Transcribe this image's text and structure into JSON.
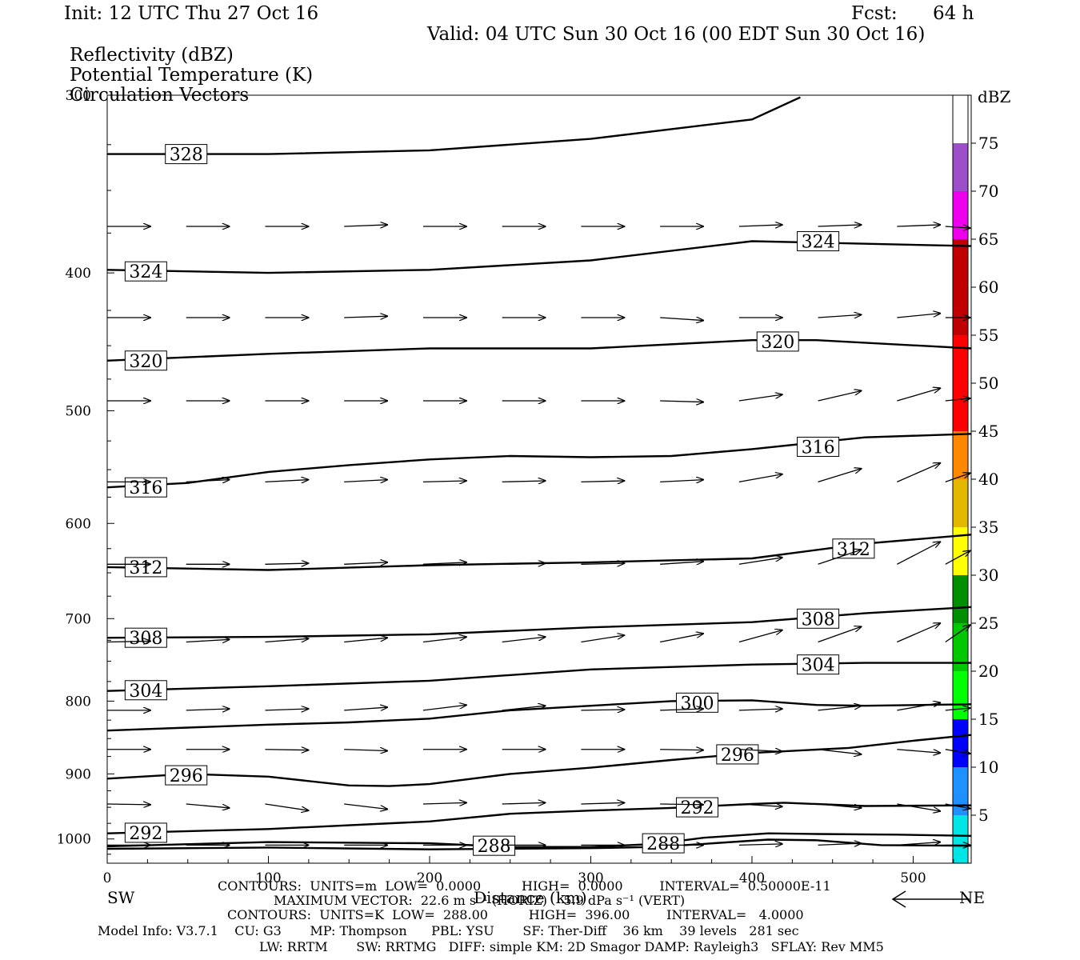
{
  "header": {
    "init": "Init: 12 UTC Thu 27 Oct 16",
    "fcst_label": "Fcst:",
    "fcst_value": "64 h",
    "valid": "Valid: 04 UTC Sun 30 Oct 16 (00 EDT Sun 30 Oct 16)",
    "field1": "Reflectivity (dBZ)",
    "field2": "Potential Temperature (K)",
    "field3": "Circulation Vectors"
  },
  "chart_data": {
    "type": "line",
    "xlabel": "Distance (km)",
    "ylabel": "",
    "xlim": [
      0,
      536
    ],
    "ylim": [
      1040,
      300
    ],
    "y_scale": "log",
    "x_ticks": [
      0,
      100,
      200,
      300,
      400,
      500
    ],
    "y_ticks": [
      300,
      400,
      500,
      600,
      700,
      800,
      900,
      1000
    ],
    "y_tick_labels": [
      "300",
      "400",
      "500",
      "600",
      "700",
      "800",
      "900",
      "1000"
    ],
    "grid": false,
    "direction_left": "SW",
    "direction_right": "NE",
    "isentropes": [
      {
        "theta": 328,
        "points": [
          [
            0,
            330
          ],
          [
            100,
            330
          ],
          [
            200,
            328
          ],
          [
            300,
            322
          ],
          [
            400,
            312
          ],
          [
            430,
            301
          ]
        ],
        "labels": [
          [
            49,
            330
          ]
        ]
      },
      {
        "theta": 324,
        "points": [
          [
            0,
            398
          ],
          [
            100,
            400
          ],
          [
            200,
            398
          ],
          [
            300,
            392
          ],
          [
            400,
            380
          ],
          [
            536,
            383
          ]
        ],
        "labels": [
          [
            24,
            399
          ],
          [
            441,
            380
          ]
        ]
      },
      {
        "theta": 320,
        "points": [
          [
            0,
            461
          ],
          [
            100,
            456
          ],
          [
            200,
            452
          ],
          [
            300,
            452
          ],
          [
            400,
            446
          ],
          [
            440,
            446
          ],
          [
            536,
            452
          ]
        ],
        "labels": [
          [
            24,
            461
          ],
          [
            416,
            447
          ]
        ]
      },
      {
        "theta": 316,
        "points": [
          [
            0,
            566
          ],
          [
            50,
            562
          ],
          [
            100,
            552
          ],
          [
            150,
            546
          ],
          [
            200,
            541
          ],
          [
            250,
            538
          ],
          [
            300,
            539
          ],
          [
            350,
            538
          ],
          [
            400,
            532
          ],
          [
            470,
            522
          ],
          [
            536,
            519
          ]
        ],
        "labels": [
          [
            24,
            566
          ],
          [
            441,
            530
          ]
        ]
      },
      {
        "theta": 312,
        "points": [
          [
            0,
            644
          ],
          [
            100,
            647
          ],
          [
            200,
            642
          ],
          [
            300,
            639
          ],
          [
            400,
            635
          ],
          [
            470,
            620
          ],
          [
            536,
            611
          ]
        ],
        "labels": [
          [
            24,
            644
          ],
          [
            463,
            625
          ]
        ]
      },
      {
        "theta": 308,
        "points": [
          [
            0,
            722
          ],
          [
            100,
            721
          ],
          [
            200,
            718
          ],
          [
            300,
            710
          ],
          [
            400,
            704
          ],
          [
            470,
            694
          ],
          [
            536,
            687
          ]
        ],
        "labels": [
          [
            24,
            722
          ],
          [
            441,
            700
          ]
        ]
      },
      {
        "theta": 304,
        "points": [
          [
            0,
            787
          ],
          [
            100,
            781
          ],
          [
            200,
            774
          ],
          [
            300,
            760
          ],
          [
            400,
            754
          ],
          [
            470,
            752
          ],
          [
            536,
            752
          ]
        ],
        "labels": [
          [
            24,
            786
          ],
          [
            441,
            754
          ]
        ]
      },
      {
        "theta": 300,
        "points": [
          [
            0,
            839
          ],
          [
            100,
            831
          ],
          [
            150,
            828
          ],
          [
            200,
            823
          ],
          [
            250,
            812
          ],
          [
            300,
            806
          ],
          [
            350,
            800
          ],
          [
            400,
            799
          ],
          [
            440,
            805
          ],
          [
            470,
            806
          ],
          [
            536,
            804
          ]
        ],
        "labels": [
          [
            366,
            802
          ]
        ]
      },
      {
        "theta": 296,
        "points": [
          [
            0,
            907
          ],
          [
            50,
            900
          ],
          [
            100,
            904
          ],
          [
            150,
            917
          ],
          [
            175,
            918
          ],
          [
            200,
            915
          ],
          [
            250,
            900
          ],
          [
            300,
            891
          ],
          [
            350,
            880
          ],
          [
            400,
            870
          ],
          [
            460,
            863
          ],
          [
            500,
            853
          ],
          [
            536,
            845
          ]
        ],
        "labels": [
          [
            49,
            902
          ],
          [
            391,
            872
          ]
        ]
      },
      {
        "theta": 292,
        "points": [
          [
            0,
            991
          ],
          [
            100,
            984
          ],
          [
            200,
            972
          ],
          [
            250,
            960
          ],
          [
            300,
            955
          ],
          [
            350,
            951
          ],
          [
            400,
            945
          ],
          [
            420,
            943
          ],
          [
            470,
            948
          ],
          [
            536,
            947
          ]
        ],
        "labels": [
          [
            24,
            990
          ],
          [
            366,
            950
          ]
        ]
      },
      {
        "theta": 288,
        "points": [
          [
            0,
            1012
          ],
          [
            100,
            1005
          ],
          [
            200,
            1007
          ],
          [
            250,
            1013
          ],
          [
            300,
            1013
          ],
          [
            340,
            1008
          ],
          [
            370,
            998
          ],
          [
            410,
            991
          ],
          [
            440,
            992
          ],
          [
            490,
            993
          ],
          [
            536,
            995
          ]
        ],
        "labels": [
          [
            240,
            1011
          ],
          [
            345,
            1007
          ]
        ]
      },
      {
        "theta": 288,
        "points": [
          [
            0,
            1016
          ],
          [
            100,
            1014
          ],
          [
            200,
            1017
          ],
          [
            300,
            1015
          ],
          [
            340,
            1013
          ],
          [
            370,
            1008
          ],
          [
            410,
            1001
          ],
          [
            440,
            1002
          ],
          [
            480,
            1010
          ],
          [
            536,
            1011
          ]
        ],
        "labels": []
      }
    ],
    "vectors": [
      {
        "p": 371,
        "y_end": [
          371,
          371,
          371,
          370,
          371,
          371,
          371,
          371,
          370,
          370,
          370,
          372
        ]
      },
      {
        "p": 430,
        "y_end": [
          430,
          430,
          430,
          429,
          430,
          430,
          430,
          432,
          430,
          428,
          427,
          430
        ]
      },
      {
        "p": 492,
        "y_end": [
          492,
          492,
          492,
          492,
          492,
          492,
          492,
          493,
          487,
          484,
          482,
          490
        ]
      },
      {
        "p": 561,
        "y_end": [
          561,
          559,
          559,
          559,
          560,
          560,
          560,
          559,
          554,
          549,
          544,
          553
        ]
      },
      {
        "p": 641,
        "y_end": [
          641,
          641,
          640,
          639,
          639,
          640,
          640,
          638,
          634,
          626,
          618,
          627
        ]
      },
      {
        "p": 727,
        "y_end": [
          726,
          724,
          723,
          722,
          721,
          721,
          719,
          717,
          713,
          709,
          705,
          707
        ]
      },
      {
        "p": 812,
        "y_end": [
          812,
          810,
          810,
          808,
          805,
          806,
          811,
          810,
          810,
          806,
          802,
          809
        ]
      },
      {
        "p": 865,
        "y_end": [
          865,
          865,
          866,
          867,
          865,
          865,
          865,
          866,
          868,
          872,
          870,
          871
        ]
      },
      {
        "p": 945,
        "y_end": [
          946,
          951,
          955,
          953,
          943,
          943,
          943,
          946,
          949,
          951,
          956,
          952
        ]
      },
      {
        "p": 1010,
        "y_end": [
          1010,
          1010,
          1010,
          1010,
          1010,
          1010,
          1010,
          1010,
          1008,
          1007,
          1005,
          1010
        ]
      }
    ],
    "colorbar": {
      "unit": "dBZ",
      "ticks": [
        "75",
        "70",
        "65",
        "60",
        "55",
        "50",
        "45",
        "40",
        "35",
        "30",
        "25",
        "20",
        "15",
        "10",
        "5"
      ],
      "colors": [
        "#9c4fc9",
        "#ee00ee",
        "#c00000",
        "#c00000",
        "#ff0000",
        "#ff0000",
        "#ff8800",
        "#e5b800",
        "#ffff00",
        "#008f00",
        "#00c800",
        "#00ff00",
        "#0000ff",
        "#1e90ff",
        "#00e5e5"
      ]
    }
  },
  "footer": {
    "line1": "CONTOURS:  UNITS=m  LOW=  0.0000          HIGH=  0.0000         INTERVAL=  0.50000E-11",
    "line2": "MAXIMUM VECTOR:  22.6 m s⁻¹ (HORIZ)    5.9 dPa s⁻¹ (VERT)",
    "line3": "CONTOURS:  UNITS=K  LOW=  288.00          HIGH=  396.00         INTERVAL=   4.0000",
    "model_info": "Model Info: V3.7.1    CU: G3       MP: Thompson      PBL: YSU       SF: Ther-Diff    36 km    39 levels   281 sec",
    "model_info2": "LW: RRTM       SW: RRTMG   DIFF: simple KM: 2D Smagor DAMP: Rayleigh3   SFLAY: Rev MM5"
  }
}
